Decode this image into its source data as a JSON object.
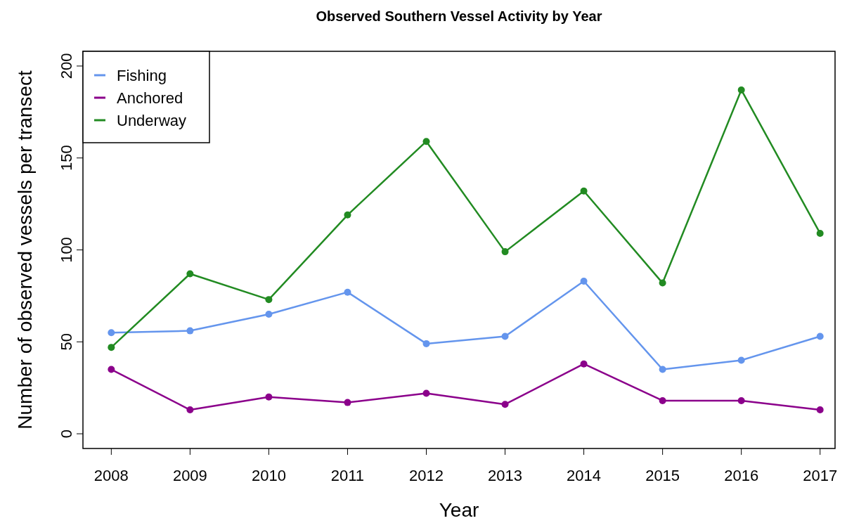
{
  "chart_data": {
    "type": "line",
    "title": "Observed Southern Vessel Activity by Year",
    "xlabel": "Year",
    "ylabel": "Number of observed vessels per transect",
    "x": [
      2008,
      2009,
      2010,
      2011,
      2012,
      2013,
      2014,
      2015,
      2016,
      2017
    ],
    "series": [
      {
        "name": "Fishing",
        "color": "#6495ed",
        "values": [
          55,
          56,
          65,
          77,
          49,
          53,
          83,
          35,
          40,
          53
        ]
      },
      {
        "name": "Anchored",
        "color": "#8b008b",
        "values": [
          35,
          13,
          20,
          17,
          22,
          16,
          38,
          18,
          18,
          13
        ]
      },
      {
        "name": "Underway",
        "color": "#228b22",
        "values": [
          47,
          87,
          73,
          119,
          159,
          99,
          132,
          82,
          187,
          109
        ]
      }
    ],
    "xlim": [
      2007.64,
      2017.19
    ],
    "xticks": [
      2008,
      2009,
      2010,
      2011,
      2012,
      2013,
      2014,
      2015,
      2016,
      2017
    ],
    "ylim": [
      -8,
      208
    ],
    "yticks": [
      0,
      50,
      100,
      150,
      200
    ],
    "grid": false,
    "legend": "top left",
    "marker": "circle",
    "line_style": "solid"
  }
}
